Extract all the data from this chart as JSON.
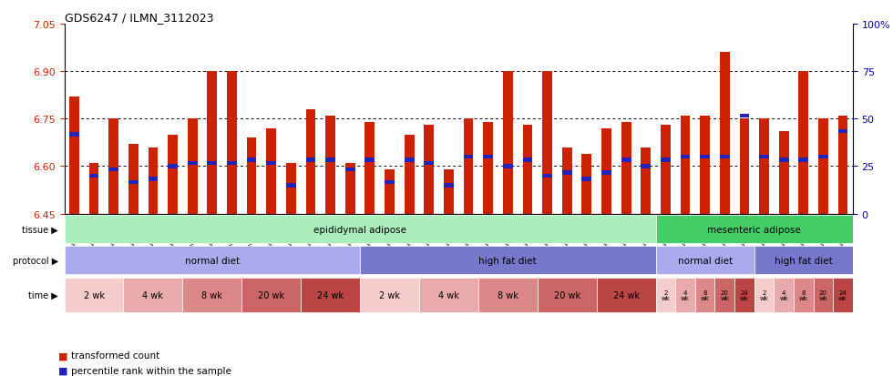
{
  "title": "GDS6247 / ILMN_3112023",
  "samples": [
    "GSM971546",
    "GSM971547",
    "GSM971548",
    "GSM971549",
    "GSM971550",
    "GSM971551",
    "GSM971552",
    "GSM971553",
    "GSM971554",
    "GSM971555",
    "GSM971556",
    "GSM971557",
    "GSM971558",
    "GSM971559",
    "GSM971560",
    "GSM971561",
    "GSM971562",
    "GSM971563",
    "GSM971564",
    "GSM971565",
    "GSM971566",
    "GSM971567",
    "GSM971568",
    "GSM971569",
    "GSM971570",
    "GSM971571",
    "GSM971572",
    "GSM971573",
    "GSM971574",
    "GSM971575",
    "GSM971576",
    "GSM971577",
    "GSM971578",
    "GSM971579",
    "GSM971580",
    "GSM971581",
    "GSM971582",
    "GSM971583",
    "GSM971584",
    "GSM971585"
  ],
  "bar_values": [
    6.82,
    6.61,
    6.75,
    6.67,
    6.66,
    6.7,
    6.75,
    6.9,
    6.9,
    6.69,
    6.72,
    6.61,
    6.78,
    6.76,
    6.61,
    6.74,
    6.59,
    6.7,
    6.73,
    6.59,
    6.75,
    6.74,
    6.9,
    6.73,
    6.9,
    6.66,
    6.64,
    6.72,
    6.74,
    6.66,
    6.73,
    6.76,
    6.76,
    6.96,
    6.75,
    6.75,
    6.71,
    6.9,
    6.75,
    6.76
  ],
  "percentile_values": [
    6.7,
    6.57,
    6.59,
    6.55,
    6.56,
    6.6,
    6.61,
    6.61,
    6.61,
    6.62,
    6.61,
    6.54,
    6.62,
    6.62,
    6.59,
    6.62,
    6.55,
    6.62,
    6.61,
    6.54,
    6.63,
    6.63,
    6.6,
    6.62,
    6.57,
    6.58,
    6.56,
    6.58,
    6.62,
    6.6,
    6.62,
    6.63,
    6.63,
    6.63,
    6.76,
    6.63,
    6.62,
    6.62,
    6.63,
    6.71
  ],
  "ymin": 6.45,
  "ymax": 7.05,
  "yticks": [
    6.45,
    6.6,
    6.75,
    6.9,
    7.05
  ],
  "grid_values": [
    6.6,
    6.75,
    6.9
  ],
  "right_yticks_vals": [
    0,
    25,
    50,
    75,
    100
  ],
  "right_yticks_labels": [
    "0",
    "25",
    "50",
    "75",
    "100%"
  ],
  "bar_color": "#cc2200",
  "percentile_color": "#2222bb",
  "tissue_epididymal_n": 30,
  "tissue_mesenteric_n": 10,
  "tissue_epididymal_color": "#aaeebb",
  "tissue_mesenteric_color": "#44cc66",
  "tissue_epididymal_label": "epididymal adipose",
  "tissue_mesenteric_label": "mesenteric adipose",
  "protocol_nd_color": "#aaaaee",
  "protocol_hfd_color": "#7777cc",
  "protocol_nd_label": "normal diet",
  "protocol_hfd_label": "high fat diet",
  "time_colors": [
    "#f5cccc",
    "#e8aaaa",
    "#dd8888",
    "#cc6666",
    "#bb4444"
  ],
  "time_labels_long": [
    "2 wk",
    "4 wk",
    "8 wk",
    "20 wk",
    "24 wk"
  ],
  "time_labels_short": [
    "2\nwk",
    "4\nwk",
    "8\nwk",
    "20\nwk",
    "24\nwk"
  ],
  "background_color": "#ffffff",
  "axis_label_color": "#cc2200",
  "right_axis_color": "#0000bb",
  "legend_bar_color": "#cc2200",
  "legend_pct_color": "#2222bb"
}
